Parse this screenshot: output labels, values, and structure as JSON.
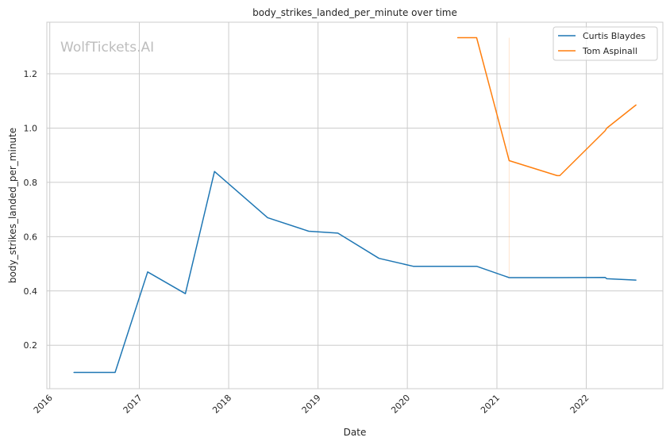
{
  "chart_data": {
    "type": "line",
    "title": "body_strikes_landed_per_minute over time",
    "xlabel": "Date",
    "ylabel": "body_strikes_landed_per_minute",
    "watermark": "WolfTickets.AI",
    "x_ticks": [
      "2016",
      "2017",
      "2018",
      "2019",
      "2020",
      "2021",
      "2022"
    ],
    "y_ticks": [
      0.2,
      0.4,
      0.6,
      0.8,
      1.0,
      1.2
    ],
    "y_tick_labels": [
      "0.2",
      "0.4",
      "0.6",
      "0.8",
      "1.0",
      "1.2"
    ],
    "xlim": [
      "2015-12-20",
      "2022-11-10"
    ],
    "ylim": [
      0.04,
      1.39
    ],
    "grid": true,
    "legend_position": "top-right",
    "series": [
      {
        "name": "Curtis Blaydes",
        "color": "#1f77b4",
        "points": [
          [
            "2016-04-09",
            0.1
          ],
          [
            "2016-09-24",
            0.1
          ],
          [
            "2017-02-04",
            0.47
          ],
          [
            "2017-07-08",
            0.39
          ],
          [
            "2017-11-04",
            0.84
          ],
          [
            "2018-06-09",
            0.67
          ],
          [
            "2018-11-24",
            0.62
          ],
          [
            "2019-03-23",
            0.613
          ],
          [
            "2019-09-07",
            0.52
          ],
          [
            "2020-01-25",
            0.491
          ],
          [
            "2020-10-10",
            0.491
          ],
          [
            "2021-02-20",
            0.449
          ],
          [
            "2021-09-04",
            0.449
          ],
          [
            "2022-03-19",
            0.45
          ],
          [
            "2022-03-26",
            0.445
          ],
          [
            "2022-07-23",
            0.44
          ]
        ]
      },
      {
        "name": "Tom Aspinall",
        "color": "#ff7f0e",
        "points": [
          [
            "2020-07-25",
            1.333
          ],
          [
            "2020-10-10",
            1.333
          ],
          [
            "2021-02-20",
            0.88
          ],
          [
            "2021-09-04",
            0.825
          ],
          [
            "2021-09-15",
            0.825
          ],
          [
            "2022-03-19",
            0.99
          ],
          [
            "2022-03-26",
            1.0
          ],
          [
            "2022-07-23",
            1.085
          ]
        ]
      }
    ]
  }
}
